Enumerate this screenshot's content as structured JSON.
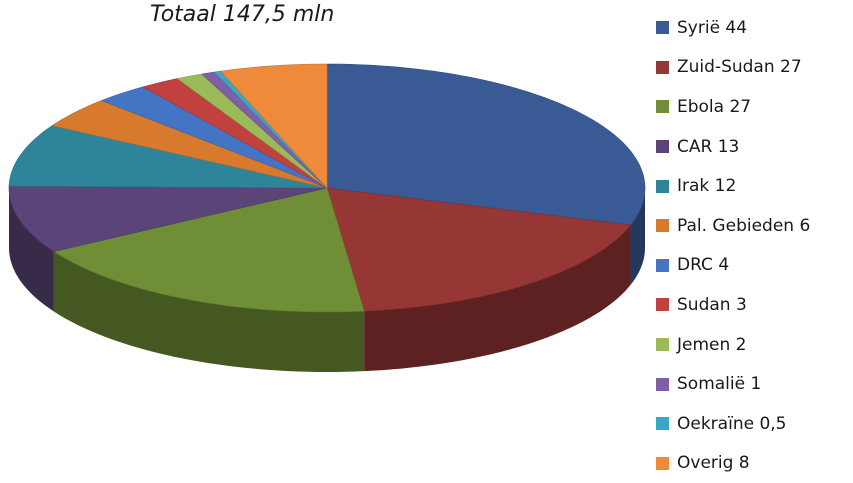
{
  "chart_data": {
    "type": "pie",
    "title": "Totaal 147,5 mln",
    "legend_position": "right",
    "slices": [
      {
        "label": "Syrië 44",
        "value": 44,
        "color": "#3a5a96"
      },
      {
        "label": "Zuid-Sudan 27",
        "value": 27,
        "color": "#963635"
      },
      {
        "label": "Ebola 27",
        "value": 27,
        "color": "#6f8e36"
      },
      {
        "label": "CAR 13",
        "value": 13,
        "color": "#5b4578"
      },
      {
        "label": "Irak 12",
        "value": 12,
        "color": "#2e859a"
      },
      {
        "label": "Pal. Gebieden 6",
        "value": 6,
        "color": "#d77a2d"
      },
      {
        "label": "DRC 4",
        "value": 4,
        "color": "#4474c4"
      },
      {
        "label": "Sudan 3",
        "value": 3,
        "color": "#c0413e"
      },
      {
        "label": "Jemen 2",
        "value": 2,
        "color": "#9bbb59"
      },
      {
        "label": "Somalië 1",
        "value": 1,
        "color": "#7f5fa6"
      },
      {
        "label": "Oekraïne 0,5",
        "value": 0.5,
        "color": "#3aa6c4"
      },
      {
        "label": "Overig 8",
        "value": 8,
        "color": "#ef8a3a"
      }
    ]
  }
}
